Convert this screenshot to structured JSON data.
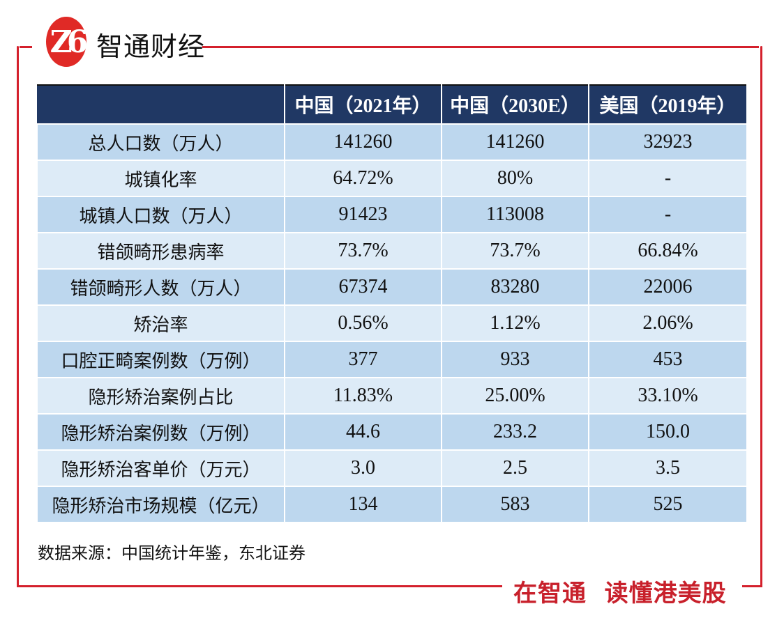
{
  "brand": {
    "logo_text": "Z6",
    "name": "智通财经",
    "slogan": "在智通  读懂港美股"
  },
  "colors": {
    "header_bg": "#203864",
    "row_dark": "#bdd7ee",
    "row_light": "#ddebf7",
    "frame": "#d4202c"
  },
  "table": {
    "headers": [
      "",
      "中国（2021年）",
      "中国（2030E）",
      "美国（2019年）"
    ],
    "rows": [
      [
        "总人口数（万人）",
        "141260",
        "141260",
        "32923"
      ],
      [
        "城镇化率",
        "64.72%",
        "80%",
        "-"
      ],
      [
        "城镇人口数（万人）",
        "91423",
        "113008",
        "-"
      ],
      [
        "错颌畸形患病率",
        "73.7%",
        "73.7%",
        "66.84%"
      ],
      [
        "错颌畸形人数（万人）",
        "67374",
        "83280",
        "22006"
      ],
      [
        "矫治率",
        "0.56%",
        "1.12%",
        "2.06%"
      ],
      [
        "口腔正畸案例数（万例）",
        "377",
        "933",
        "453"
      ],
      [
        "隐形矫治案例占比",
        "11.83%",
        "25.00%",
        "33.10%"
      ],
      [
        "隐形矫治案例数（万例）",
        "44.6",
        "233.2",
        "150.0"
      ],
      [
        "隐形矫治客单价（万元）",
        "3.0",
        "2.5",
        "3.5"
      ],
      [
        "隐形矫治市场规模（亿元）",
        "134",
        "583",
        "525"
      ]
    ]
  },
  "source": "数据来源：中国统计年鉴，东北证券"
}
